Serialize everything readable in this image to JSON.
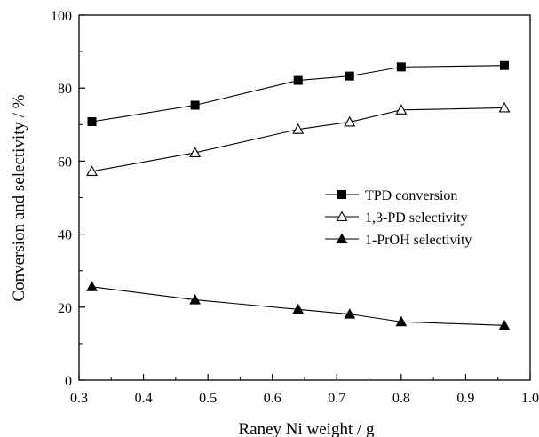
{
  "chart_data": {
    "type": "line",
    "title": "",
    "xlabel": "Raney Ni weight / g",
    "ylabel": "Conversion and selectivity  / %",
    "xlim": [
      0.3,
      1.0
    ],
    "ylim": [
      0,
      100
    ],
    "x_ticks": [
      "0.3",
      "0.4",
      "0.5",
      "0.6",
      "0.7",
      "0.8",
      "0.9",
      "1.0"
    ],
    "y_ticks": [
      "0",
      "20",
      "40",
      "60",
      "80",
      "100"
    ],
    "grid": false,
    "legend_position": "center-right",
    "x": [
      0.32,
      0.48,
      0.64,
      0.72,
      0.8,
      0.96
    ],
    "series": [
      {
        "name": "TPD conversion",
        "marker": "filled-square",
        "values": [
          70.8,
          75.3,
          82.1,
          83.3,
          85.8,
          86.2
        ]
      },
      {
        "name": "1,3-PD selectivity",
        "marker": "open-triangle",
        "values": [
          57.2,
          62.3,
          68.7,
          70.7,
          74.0,
          74.6
        ]
      },
      {
        "name": "1-PrOH  selectivity",
        "marker": "filled-triangle",
        "values": [
          25.6,
          22.0,
          19.4,
          18.1,
          16.0,
          15.0
        ]
      }
    ]
  }
}
